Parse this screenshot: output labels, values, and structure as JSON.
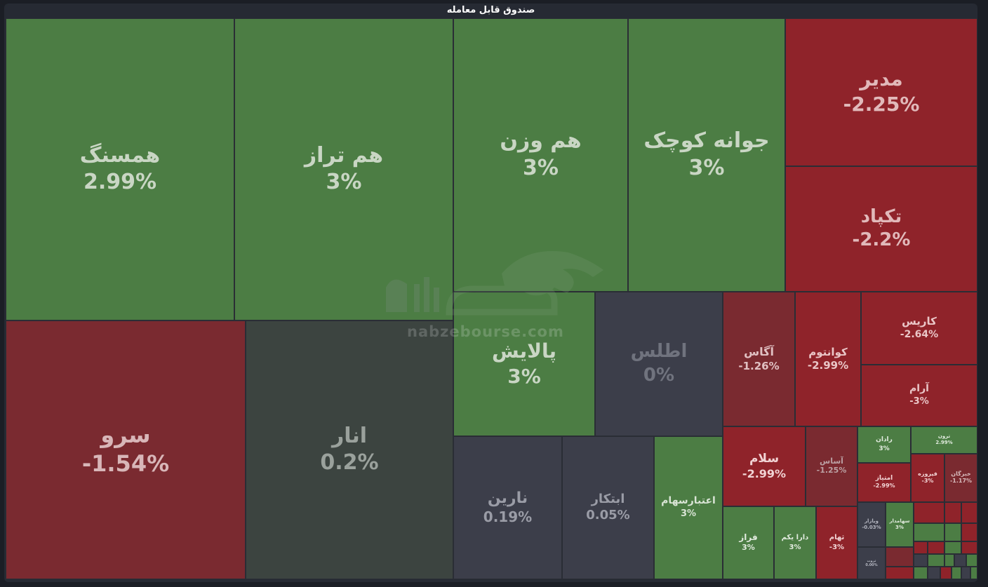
{
  "chart_data": {
    "type": "treemap",
    "title": "صندوق قابل معامله",
    "colors": {
      "up": "#4c7d44",
      "down": "#8f232a",
      "down_mild": "#7a2a30",
      "flat_neutral": "#3c4440",
      "flat_slate": "#3c3e4a",
      "up_light": "#458040"
    },
    "tiles": [
      {
        "name": "همسنگ",
        "change": "2.99%"
      },
      {
        "name": "هم تراز",
        "change": "3%"
      },
      {
        "name": "هم وزن",
        "change": "3%"
      },
      {
        "name": "جوانه کوچک",
        "change": "3%"
      },
      {
        "name": "مدیر",
        "change": "-2.25%"
      },
      {
        "name": "تکپاد",
        "change": "-2.2%"
      },
      {
        "name": "سرو",
        "change": "-1.54%"
      },
      {
        "name": "انار",
        "change": "0.2%"
      },
      {
        "name": "پالایش",
        "change": "3%"
      },
      {
        "name": "اطلس",
        "change": "0%"
      },
      {
        "name": "آگاس",
        "change": "-1.26%"
      },
      {
        "name": "کوانتوم",
        "change": "-2.99%"
      },
      {
        "name": "کاریس",
        "change": "-2.64%"
      },
      {
        "name": "آرام",
        "change": "-3%"
      },
      {
        "name": "نارین",
        "change": "0.19%"
      },
      {
        "name": "ابتکار",
        "change": "0.05%"
      },
      {
        "name": "اعتبارسهام",
        "change": "3%"
      },
      {
        "name": "سلام",
        "change": "-2.99%"
      },
      {
        "name": "آساس",
        "change": "-1.25%"
      },
      {
        "name": "رادان",
        "change": "3%"
      },
      {
        "name": "ترون",
        "change": "2.99%"
      },
      {
        "name": "فیروزه",
        "change": "-3%"
      },
      {
        "name": "امتیاز",
        "change": "-2.99%"
      },
      {
        "name": "خبرگان",
        "change": "-1.17%"
      },
      {
        "name": "فراز",
        "change": "3%"
      },
      {
        "name": "دارا یکم",
        "change": "3%"
      },
      {
        "name": "ثهام",
        "change": "-3%"
      },
      {
        "name": "ویازار",
        "change": "-0.03%"
      },
      {
        "name": "سهامدار",
        "change": "3%"
      },
      {
        "name": "ثروت",
        "change": "0.00%"
      }
    ]
  }
}
